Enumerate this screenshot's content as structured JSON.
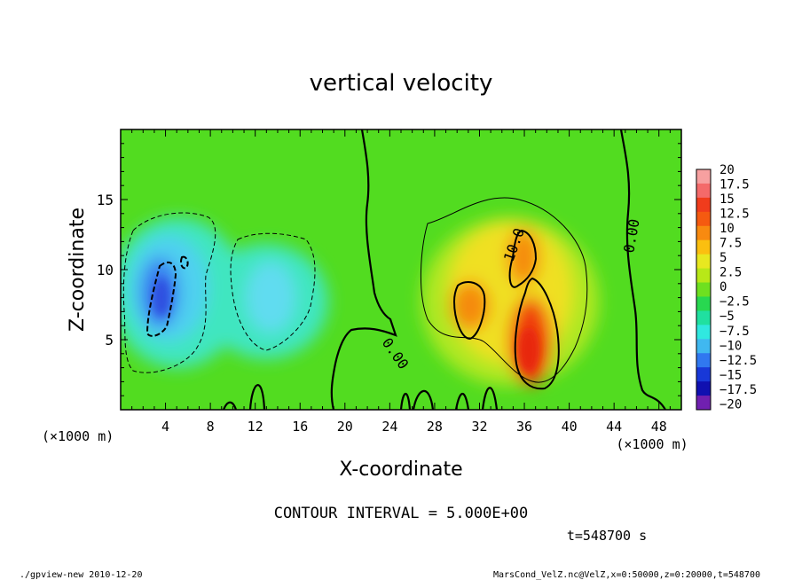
{
  "chart_data": {
    "type": "heatmap",
    "title": "vertical velocity",
    "xlabel": "X-coordinate",
    "ylabel": "Z-coordinate",
    "x_unit_label": "(×1000 m)",
    "y_unit_label": "(×1000 m)",
    "xlim": [
      0,
      50
    ],
    "ylim": [
      0,
      20
    ],
    "x_ticks": [
      "4",
      "8",
      "12",
      "16",
      "20",
      "24",
      "28",
      "32",
      "36",
      "40",
      "44",
      "48"
    ],
    "y_ticks": [
      "5",
      "10",
      "15"
    ],
    "x_tick_values": [
      4,
      8,
      12,
      16,
      20,
      24,
      28,
      32,
      36,
      40,
      44,
      48
    ],
    "y_tick_values": [
      5,
      10,
      15
    ],
    "contour_interval_text": "CONTOUR INTERVAL = 5.000E+00",
    "time_text": "t=548700 s",
    "contour_labels": [
      "10.0",
      "0.00",
      "0.00"
    ],
    "colorbar": {
      "labels": [
        "20",
        "17.5",
        "15",
        "12.5",
        "10",
        "7.5",
        "5",
        "2.5",
        "0",
        "−2.5",
        "−5",
        "−7.5",
        "−10",
        "−12.5",
        "−15",
        "−17.5",
        "−20"
      ],
      "values": [
        20,
        17.5,
        15,
        12.5,
        10,
        7.5,
        5,
        2.5,
        0,
        -2.5,
        -5,
        -7.5,
        -10,
        -12.5,
        -15,
        -17.5,
        -20
      ],
      "colors": [
        "#f7a0a0",
        "#f46a6a",
        "#f03c1c",
        "#f55a10",
        "#f88a10",
        "#fbbf10",
        "#e8e820",
        "#b8e818",
        "#6ee020",
        "#28d850",
        "#20e0a0",
        "#30e8e0",
        "#40b8f0",
        "#3078f0",
        "#1838d8",
        "#1010b0",
        "#7020b0"
      ]
    },
    "features": [
      {
        "name": "updraft core",
        "x": 35.5,
        "z": 6.0,
        "w_max": 16
      },
      {
        "name": "updraft upper",
        "x": 35.0,
        "z": 11.5,
        "w_max": 12
      },
      {
        "name": "updraft left",
        "x": 31.0,
        "z": 8.0,
        "w_max": 11
      },
      {
        "name": "downdraft",
        "x": 4.0,
        "z": 8.5,
        "w_min": -12
      },
      {
        "name": "downdraft secondary",
        "x": 13.5,
        "z": 8.0,
        "w_min": -5
      }
    ]
  },
  "footer": {
    "left": "./gpview-new   2010-12-20",
    "right": "MarsCond_VelZ.nc@VelZ,x=0:50000,z=0:20000,t=548700"
  }
}
